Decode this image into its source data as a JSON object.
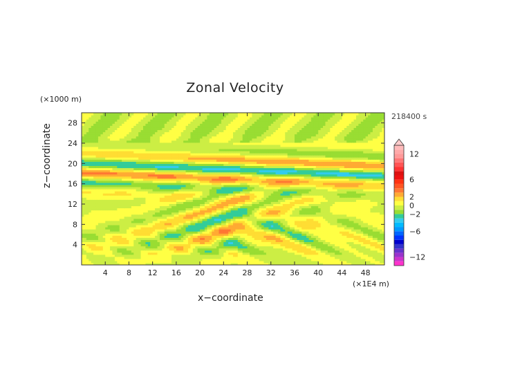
{
  "chart_data": {
    "type": "heatmap",
    "title": "Zonal Velocity",
    "xlabel": "x−coordinate",
    "ylabel": "z−coordinate",
    "x_unit": "(×1E4 m)",
    "y_unit": "(×1000 m)",
    "time_label": "218400 s",
    "xlim": [
      0,
      51.2
    ],
    "ylim": [
      0,
      30
    ],
    "x_ticks": [
      4,
      8,
      12,
      16,
      20,
      24,
      28,
      32,
      36,
      40,
      44,
      48
    ],
    "y_ticks": [
      4,
      8,
      12,
      16,
      20,
      24,
      28
    ],
    "colorbar": {
      "levels": [
        -14,
        -13,
        -12,
        -11,
        -10,
        -9,
        -8,
        -7,
        -6,
        -5,
        -4,
        -3,
        -2,
        -1,
        0,
        1,
        2,
        3,
        4,
        5,
        6,
        7,
        8,
        9,
        10,
        11,
        12,
        13,
        14
      ],
      "colors": [
        "#ff33cc",
        "#cc33cc",
        "#9933cc",
        "#6633cc",
        "#3333cc",
        "#0000cc",
        "#0033ff",
        "#0066ff",
        "#0099ff",
        "#00bbff",
        "#33ccee",
        "#33cc99",
        "#99dd33",
        "#ccee44",
        "#ffff44",
        "#ffdd33",
        "#ffaa33",
        "#ff7733",
        "#ff5522",
        "#ff3311",
        "#ee1111",
        "#dd1111",
        "#ff3333",
        "#ff5555",
        "#ff7777",
        "#ff9999",
        "#ffaaaa",
        "#ffbbbb"
      ],
      "tick_labels": [
        {
          "value": 12,
          "label": "12"
        },
        {
          "value": 6,
          "label": "6"
        },
        {
          "value": 2,
          "label": "2"
        },
        {
          "value": 0,
          "label": "0"
        },
        {
          "value": -2,
          "label": "−2"
        },
        {
          "value": -6,
          "label": "−6"
        },
        {
          "value": -12,
          "label": "−12"
        }
      ],
      "extend": "max"
    }
  }
}
